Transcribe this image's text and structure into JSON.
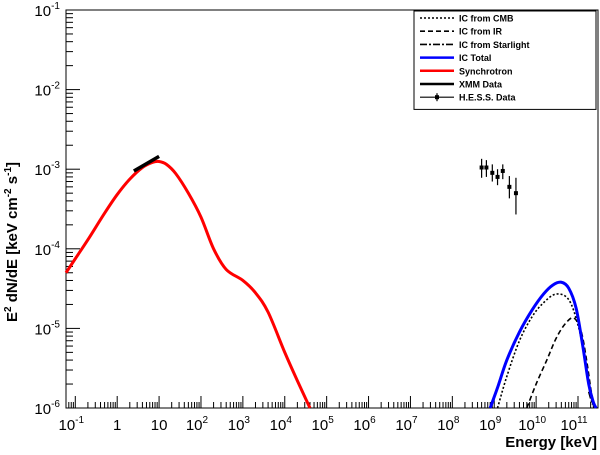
{
  "chart_data": {
    "type": "line",
    "xlabel": "Energy [keV]",
    "ylabel": "E² dN/dE [keV cm⁻² s⁻¹]",
    "ylabel_parts": [
      "E",
      "2",
      " dN/dE [keV cm",
      "-2",
      " s",
      "-1",
      "]"
    ],
    "xscale": "log",
    "yscale": "log",
    "xlim": [
      0.06,
      300000000000
    ],
    "ylim": [
      1e-06,
      0.1
    ],
    "x_ticks": [
      {
        "value": 0.1,
        "base": "10",
        "exp": "-1"
      },
      {
        "value": 1,
        "base": "1",
        "exp": ""
      },
      {
        "value": 10,
        "base": "10",
        "exp": ""
      },
      {
        "value": 100,
        "base": "10",
        "exp": "2"
      },
      {
        "value": 1000,
        "base": "10",
        "exp": "3"
      },
      {
        "value": 10000,
        "base": "10",
        "exp": "4"
      },
      {
        "value": 100000,
        "base": "10",
        "exp": "5"
      },
      {
        "value": 1000000,
        "base": "10",
        "exp": "6"
      },
      {
        "value": 10000000,
        "base": "10",
        "exp": "7"
      },
      {
        "value": 100000000,
        "base": "10",
        "exp": "8"
      },
      {
        "value": 1000000000,
        "base": "10",
        "exp": "9"
      },
      {
        "value": 10000000000,
        "base": "10",
        "exp": "10"
      },
      {
        "value": 100000000000,
        "base": "10",
        "exp": "11"
      }
    ],
    "y_ticks": [
      {
        "value": 1e-06,
        "base": "10",
        "exp": "-6"
      },
      {
        "value": 1e-05,
        "base": "10",
        "exp": "-5"
      },
      {
        "value": 0.0001,
        "base": "10",
        "exp": "-4"
      },
      {
        "value": 0.001,
        "base": "10",
        "exp": "-3"
      },
      {
        "value": 0.01,
        "base": "10",
        "exp": "-2"
      },
      {
        "value": 0.1,
        "base": "10",
        "exp": "-1"
      }
    ],
    "grid": false,
    "legend_position": "top-right",
    "series": [
      {
        "name": "IC from CMB",
        "color": "#000000",
        "style": "dotted",
        "x": [
          1200000000.0,
          2000000000.0,
          4000000000.0,
          8000000000.0,
          15000000000.0,
          30000000000.0,
          60000000000.0,
          100000000000.0,
          150000000000.0,
          200000000000.0,
          240000000000.0
        ],
        "y": [
          1e-06,
          2.5e-06,
          7e-06,
          1.4e-05,
          2.1e-05,
          2.7e-05,
          2.3e-05,
          1.1e-05,
          4e-06,
          1.5e-06,
          1e-06
        ]
      },
      {
        "name": "IC from IR",
        "color": "#000000",
        "style": "dashed",
        "x": [
          6000000000.0,
          10000000000.0,
          18000000000.0,
          30000000000.0,
          50000000000.0,
          80000000000.0,
          120000000000.0,
          160000000000.0,
          200000000000.0,
          240000000000.0
        ],
        "y": [
          1e-06,
          2e-06,
          4e-06,
          7.5e-06,
          1.15e-05,
          1.35e-05,
          9e-06,
          4e-06,
          1.8e-06,
          1e-06
        ]
      },
      {
        "name": "IC from Starlight",
        "color": "#000000",
        "style": "dashdot",
        "x": [
          180000000000.0,
          220000000000.0
        ],
        "y": [
          1.6e-06,
          1.1e-06
        ]
      },
      {
        "name": "IC Total",
        "color": "#0000ff",
        "style": "solid",
        "x": [
          800000000.0,
          1200000000.0,
          2000000000.0,
          4000000000.0,
          8000000000.0,
          15000000000.0,
          25000000000.0,
          40000000000.0,
          60000000000.0,
          90000000000.0,
          130000000000.0,
          180000000000.0,
          230000000000.0,
          270000000000.0
        ],
        "y": [
          1e-06,
          1.8e-06,
          4e-06,
          9e-06,
          1.7e-05,
          2.7e-05,
          3.5e-05,
          3.8e-05,
          3.2e-05,
          1.8e-05,
          6e-06,
          2e-06,
          1.2e-06,
          1e-06
        ]
      },
      {
        "name": "Synchrotron",
        "color": "#ff0000",
        "style": "solid",
        "x": [
          0.06,
          0.1,
          0.2,
          0.5,
          1,
          2,
          4,
          7,
          10,
          15,
          25,
          50,
          100,
          200,
          400,
          1000,
          2000,
          4000,
          10000,
          20000,
          40000
        ],
        "y": [
          5e-05,
          7.5e-05,
          0.00013,
          0.00028,
          0.00048,
          0.00075,
          0.00105,
          0.00122,
          0.00125,
          0.00115,
          0.00088,
          0.0005,
          0.00025,
          0.0001,
          5.5e-05,
          4e-05,
          2.8e-05,
          1.6e-05,
          5e-06,
          2.2e-06,
          1e-06
        ]
      },
      {
        "name": "XMM Data",
        "color": "#000000",
        "style": "thick",
        "x": [
          2.5,
          10
        ],
        "y": [
          0.00095,
          0.00145
        ]
      },
      {
        "name": "H.E.S.S. Data",
        "color": "#000000",
        "style": "points",
        "points": [
          {
            "x": 500000000.0,
            "y": 0.00105,
            "ylo": 0.00078,
            "yhi": 0.00135
          },
          {
            "x": 650000000.0,
            "y": 0.00105,
            "ylo": 0.0008,
            "yhi": 0.0013
          },
          {
            "x": 900000000.0,
            "y": 0.0009,
            "ylo": 0.0007,
            "yhi": 0.00115
          },
          {
            "x": 1200000000.0,
            "y": 0.0008,
            "ylo": 0.00063,
            "yhi": 0.001
          },
          {
            "x": 1600000000.0,
            "y": 0.00095,
            "ylo": 0.00075,
            "yhi": 0.00115
          },
          {
            "x": 2300000000.0,
            "y": 0.0006,
            "ylo": 0.00043,
            "yhi": 0.00082
          },
          {
            "x": 3300000000.0,
            "y": 0.0005,
            "ylo": 0.00027,
            "yhi": 0.00078
          }
        ]
      }
    ]
  }
}
